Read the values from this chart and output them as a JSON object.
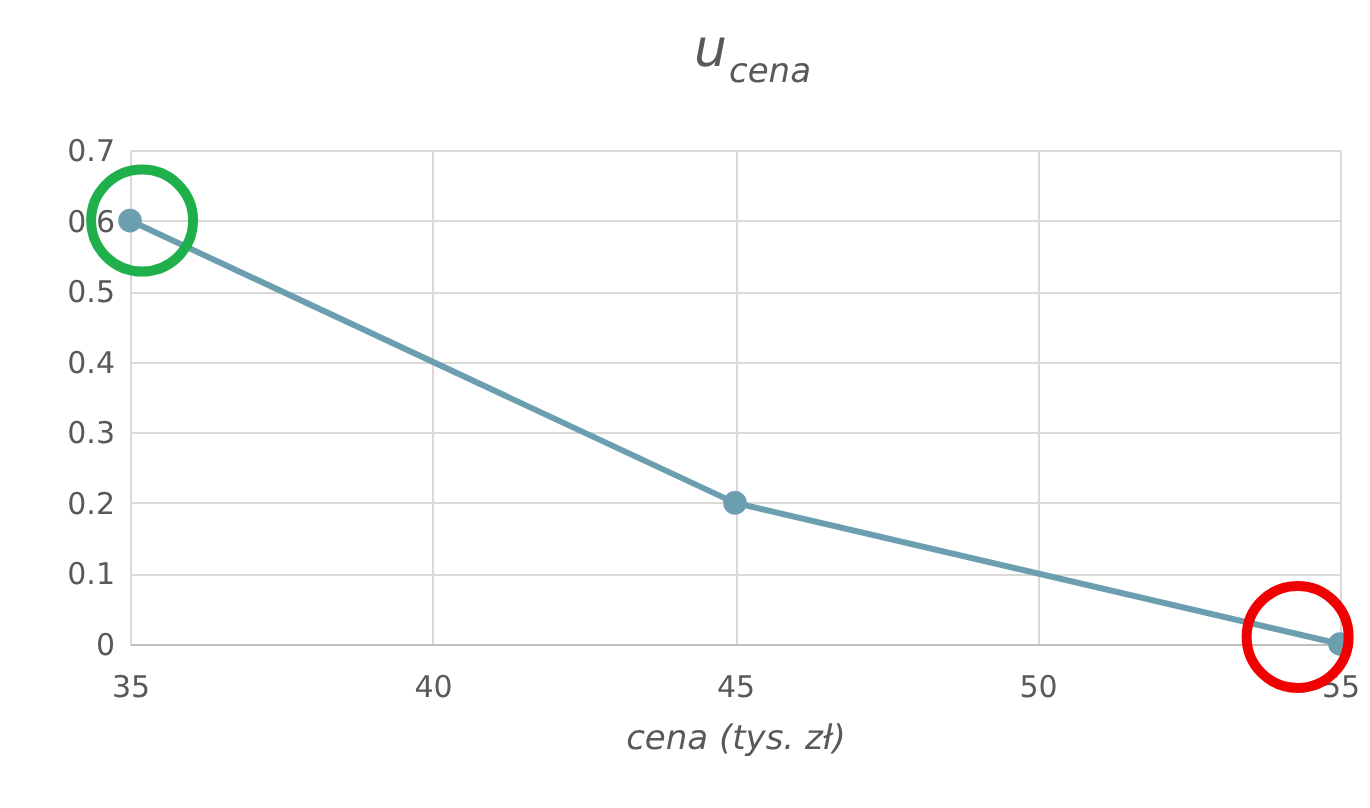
{
  "chart_data": {
    "type": "line",
    "title": "u$_{cena}$",
    "xlabel": "cena (tys. zł)",
    "x": [
      35,
      45,
      55
    ],
    "series": [
      {
        "color": "#6b9fb0",
        "values": [
          0.6,
          0.2,
          0
        ],
        "marker": "circle"
      },
      {
        "type": "scatter",
        "x": [
          35.2
        ],
        "values": [
          0.6
        ],
        "color": "#1fb04c",
        "marker": "circle"
      },
      {
        "type": "scatter",
        "x": [
          54.3
        ],
        "values": [
          0.01
        ],
        "color": "#f00000",
        "marker": "circle"
      }
    ],
    "xlim": [
      35,
      55
    ],
    "xticks": [
      35,
      40,
      45,
      50,
      55
    ],
    "ylim": [
      0,
      0.7
    ],
    "yticks": [
      0,
      0.1,
      0.2,
      0.3,
      0.4,
      0.5,
      0.6,
      0.7
    ],
    "grid": true
  }
}
